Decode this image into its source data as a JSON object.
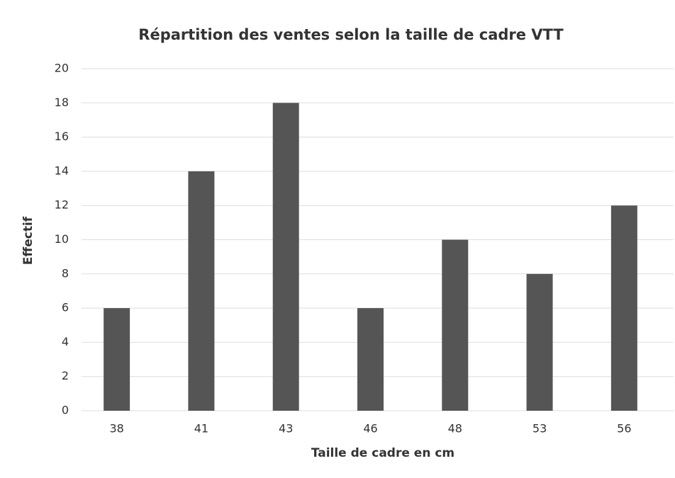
{
  "chart_data": {
    "type": "bar",
    "title": "Répartition des ventes selon la taille de cadre VTT",
    "x_label": "Taille de cadre en cm",
    "y_label": "Effectif",
    "categories": [
      "38",
      "41",
      "43",
      "46",
      "48",
      "53",
      "56"
    ],
    "values": [
      6,
      14,
      18,
      6,
      10,
      8,
      12
    ],
    "color": "#555555",
    "ylim": [
      0,
      20
    ],
    "yticks": [
      0,
      2,
      4,
      6,
      8,
      10,
      12,
      14,
      16,
      18,
      20
    ],
    "grid": true
  }
}
